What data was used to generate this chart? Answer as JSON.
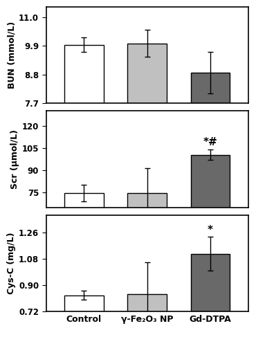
{
  "groups": [
    "Control",
    "γ-Fe₂O₃ NP",
    "Gd-DTPA"
  ],
  "bar_colors": [
    "#ffffff",
    "#c0c0c0",
    "#696969"
  ],
  "bar_edgecolor": "#000000",
  "bun": {
    "values": [
      9.95,
      10.0,
      8.87
    ],
    "errors": [
      0.28,
      0.52,
      0.8
    ],
    "ylabel": "BUN (mmol/L)",
    "ylim": [
      7.7,
      11.4
    ],
    "yticks": [
      7.7,
      8.8,
      9.9,
      11.0
    ],
    "annotations": []
  },
  "scr": {
    "values": [
      74.5,
      74.5,
      100.5
    ],
    "errors": [
      5.5,
      17.0,
      3.5
    ],
    "ylabel": "Scr (μmol/L)",
    "ylim": [
      65,
      130
    ],
    "yticks": [
      75,
      90,
      105,
      120
    ],
    "annotations": [
      {
        "bar_idx": 2,
        "text": "*#"
      }
    ]
  },
  "cysc": {
    "values": [
      0.83,
      0.84,
      1.115
    ],
    "errors": [
      0.03,
      0.215,
      0.115
    ],
    "ylabel": "Cys-C (mg/L)",
    "ylim": [
      0.72,
      1.38
    ],
    "yticks": [
      0.72,
      0.9,
      1.08,
      1.26
    ],
    "annotations": [
      {
        "bar_idx": 2,
        "text": "*"
      }
    ]
  },
  "xlabel_labels": [
    "Control",
    "γ-Fe₂O₃ NP",
    "Gd-DTPA"
  ],
  "bar_width": 0.62,
  "capsize": 3,
  "figsize": [
    3.7,
    5.0
  ],
  "dpi": 100
}
